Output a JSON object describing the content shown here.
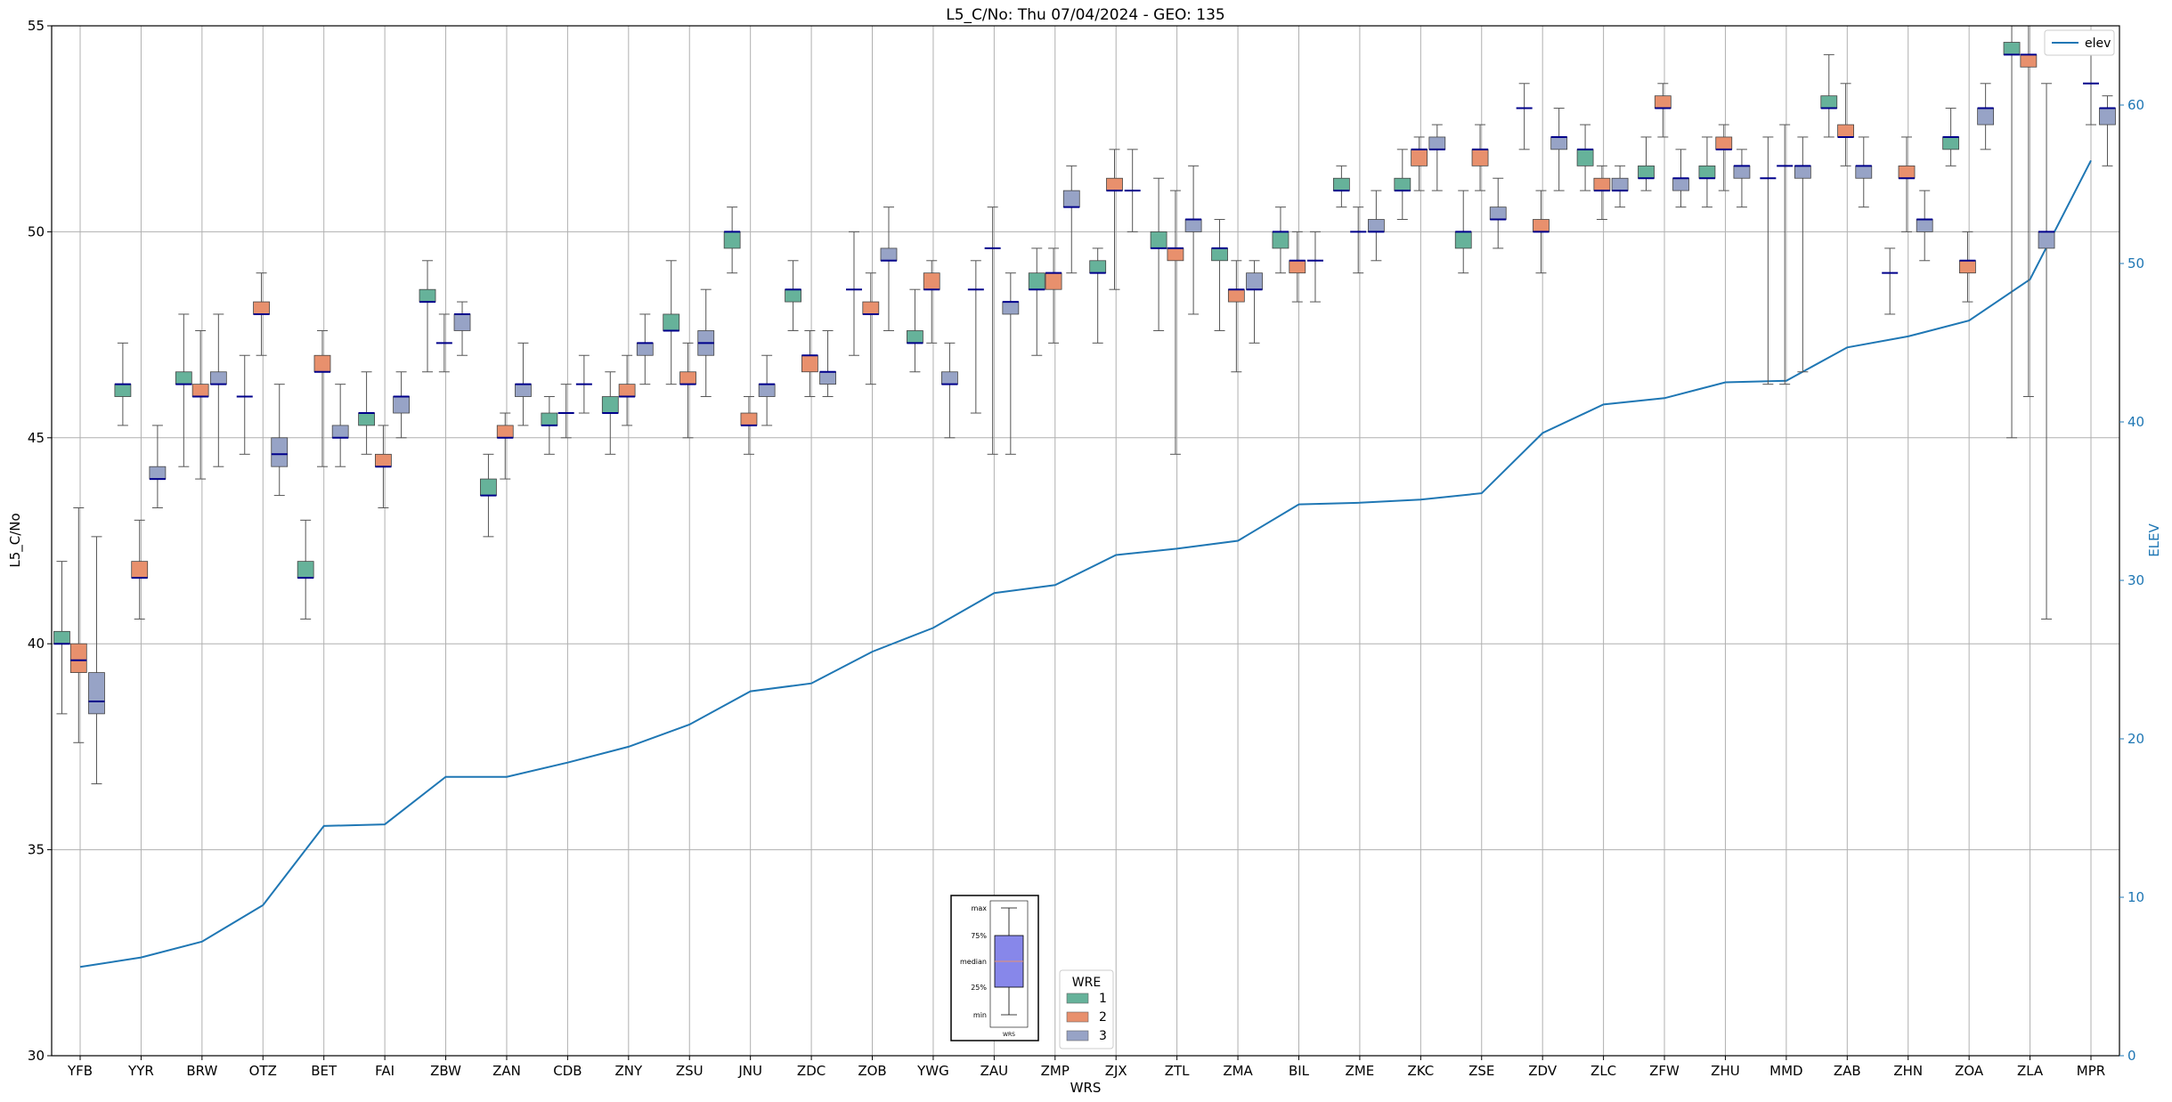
{
  "chart_data": {
    "type": "boxplot",
    "title": "L5_C/No: Thu 07/04/2024 - GEO: 135",
    "xlabel": "WRS",
    "ylabel": "L5_C/No",
    "y2label": "ELEV",
    "ylim": [
      30,
      55
    ],
    "y2lim": [
      0,
      65
    ],
    "yticks": [
      30,
      35,
      40,
      45,
      50,
      55
    ],
    "y2ticks": [
      0,
      10,
      20,
      30,
      40,
      50,
      60
    ],
    "grid": true,
    "categories": [
      "YFB",
      "YYR",
      "BRW",
      "OTZ",
      "BET",
      "FAI",
      "ZBW",
      "ZAN",
      "CDB",
      "ZNY",
      "ZSU",
      "JNU",
      "ZDC",
      "ZOB",
      "YWG",
      "ZAU",
      "ZMP",
      "ZJX",
      "ZTL",
      "ZMA",
      "BIL",
      "ZME",
      "ZKC",
      "ZSE",
      "ZDV",
      "ZLC",
      "ZFW",
      "ZHU",
      "MMD",
      "ZAB",
      "ZHN",
      "ZOA",
      "ZLA",
      "MPR"
    ],
    "legend": {
      "title": "WRE",
      "items": [
        "1",
        "2",
        "3"
      ],
      "placement": "lower-center"
    },
    "colors": {
      "1": "#66b29a",
      "2": "#e8906d",
      "3": "#97a3c6",
      "elev": "#1f77b4",
      "median": "#00008b"
    },
    "series": [
      {
        "name": "1",
        "boxes": [
          {
            "cat": "YFB",
            "min": 38.3,
            "q1": 40.0,
            "med": 40.0,
            "q3": 40.3,
            "max": 42.0
          },
          {
            "cat": "YYR",
            "min": 45.3,
            "q1": 46.0,
            "med": 46.3,
            "q3": 46.3,
            "max": 47.3
          },
          {
            "cat": "BRW",
            "min": 44.3,
            "q1": 46.3,
            "med": 46.3,
            "q3": 46.6,
            "max": 48.0
          },
          {
            "cat": "OTZ",
            "min": 44.6,
            "q1": 46.0,
            "med": 46.0,
            "q3": 46.0,
            "max": 47.0
          },
          {
            "cat": "BET",
            "min": 40.6,
            "q1": 41.6,
            "med": 41.6,
            "q3": 42.0,
            "max": 43.0
          },
          {
            "cat": "FAI",
            "min": 44.6,
            "q1": 45.3,
            "med": 45.6,
            "q3": 45.6,
            "max": 46.6
          },
          {
            "cat": "ZBW",
            "min": 46.6,
            "q1": 48.3,
            "med": 48.3,
            "q3": 48.6,
            "max": 49.3
          },
          {
            "cat": "ZAN",
            "min": 42.6,
            "q1": 43.6,
            "med": 43.6,
            "q3": 44.0,
            "max": 44.6
          },
          {
            "cat": "CDB",
            "min": 44.6,
            "q1": 45.3,
            "med": 45.3,
            "q3": 45.6,
            "max": 46.0
          },
          {
            "cat": "ZNY",
            "min": 44.6,
            "q1": 45.6,
            "med": 45.6,
            "q3": 46.0,
            "max": 46.6
          },
          {
            "cat": "ZSU",
            "min": 46.3,
            "q1": 47.6,
            "med": 47.6,
            "q3": 48.0,
            "max": 49.3
          },
          {
            "cat": "JNU",
            "min": 49.0,
            "q1": 49.6,
            "med": 50.0,
            "q3": 50.0,
            "max": 50.6
          },
          {
            "cat": "ZDC",
            "min": 47.6,
            "q1": 48.3,
            "med": 48.6,
            "q3": 48.6,
            "max": 49.3
          },
          {
            "cat": "ZOB",
            "min": 47.0,
            "q1": 48.6,
            "med": 48.6,
            "q3": 48.6,
            "max": 50.0
          },
          {
            "cat": "YWG",
            "min": 46.6,
            "q1": 47.3,
            "med": 47.3,
            "q3": 47.6,
            "max": 48.6
          },
          {
            "cat": "ZAU",
            "min": 45.6,
            "q1": 48.6,
            "med": 48.6,
            "q3": 48.6,
            "max": 49.3
          },
          {
            "cat": "ZMP",
            "min": 47.0,
            "q1": 48.6,
            "med": 48.6,
            "q3": 49.0,
            "max": 49.6
          },
          {
            "cat": "ZJX",
            "min": 47.3,
            "q1": 49.0,
            "med": 49.0,
            "q3": 49.3,
            "max": 49.6
          },
          {
            "cat": "ZTL",
            "min": 47.6,
            "q1": 49.6,
            "med": 49.6,
            "q3": 50.0,
            "max": 51.3
          },
          {
            "cat": "ZMA",
            "min": 47.6,
            "q1": 49.3,
            "med": 49.6,
            "q3": 49.6,
            "max": 50.3
          },
          {
            "cat": "BIL",
            "min": 49.0,
            "q1": 49.6,
            "med": 50.0,
            "q3": 50.0,
            "max": 50.6
          },
          {
            "cat": "ZME",
            "min": 50.6,
            "q1": 51.0,
            "med": 51.0,
            "q3": 51.3,
            "max": 51.6
          },
          {
            "cat": "ZKC",
            "min": 50.3,
            "q1": 51.0,
            "med": 51.0,
            "q3": 51.3,
            "max": 52.0
          },
          {
            "cat": "ZSE",
            "min": 49.0,
            "q1": 49.6,
            "med": 50.0,
            "q3": 50.0,
            "max": 51.0
          },
          {
            "cat": "ZDV",
            "min": 52.0,
            "q1": 53.0,
            "med": 53.0,
            "q3": 53.0,
            "max": 53.6
          },
          {
            "cat": "ZLC",
            "min": 51.0,
            "q1": 51.6,
            "med": 52.0,
            "q3": 52.0,
            "max": 52.6
          },
          {
            "cat": "ZFW",
            "min": 51.0,
            "q1": 51.3,
            "med": 51.3,
            "q3": 51.6,
            "max": 52.3
          },
          {
            "cat": "ZHU",
            "min": 50.6,
            "q1": 51.3,
            "med": 51.3,
            "q3": 51.6,
            "max": 52.3
          },
          {
            "cat": "MMD",
            "min": 46.3,
            "q1": 51.3,
            "med": 51.3,
            "q3": 51.3,
            "max": 52.3
          },
          {
            "cat": "ZAB",
            "min": 52.3,
            "q1": 53.0,
            "med": 53.0,
            "q3": 53.3,
            "max": 54.3
          },
          {
            "cat": "ZHN",
            "min": 48.0,
            "q1": 49.0,
            "med": 49.0,
            "q3": 49.0,
            "max": 49.6
          },
          {
            "cat": "ZOA",
            "min": 51.6,
            "q1": 52.0,
            "med": 52.3,
            "q3": 52.3,
            "max": 53.0
          },
          {
            "cat": "ZLA",
            "min": 45.0,
            "q1": 54.3,
            "med": 54.3,
            "q3": 54.6,
            "max": 55.0
          }
        ]
      },
      {
        "name": "2",
        "boxes": [
          {
            "cat": "YFB",
            "min": 37.6,
            "q1": 39.3,
            "med": 39.6,
            "q3": 40.0,
            "max": 43.3
          },
          {
            "cat": "YYR",
            "min": 40.6,
            "q1": 41.6,
            "med": 41.6,
            "q3": 42.0,
            "max": 43.0
          },
          {
            "cat": "BRW",
            "min": 44.0,
            "q1": 46.0,
            "med": 46.0,
            "q3": 46.3,
            "max": 47.6
          },
          {
            "cat": "OTZ",
            "min": 47.0,
            "q1": 48.0,
            "med": 48.0,
            "q3": 48.3,
            "max": 49.0
          },
          {
            "cat": "BET",
            "min": 44.3,
            "q1": 46.6,
            "med": 46.6,
            "q3": 47.0,
            "max": 47.6
          },
          {
            "cat": "FAI",
            "min": 43.3,
            "q1": 44.3,
            "med": 44.3,
            "q3": 44.6,
            "max": 45.3
          },
          {
            "cat": "ZBW",
            "min": 46.6,
            "q1": 47.3,
            "med": 47.3,
            "q3": 47.3,
            "max": 48.0
          },
          {
            "cat": "ZAN",
            "min": 44.0,
            "q1": 45.0,
            "med": 45.0,
            "q3": 45.3,
            "max": 45.6
          },
          {
            "cat": "CDB",
            "min": 45.0,
            "q1": 45.6,
            "med": 45.6,
            "q3": 45.6,
            "max": 46.3
          },
          {
            "cat": "ZNY",
            "min": 45.3,
            "q1": 46.0,
            "med": 46.0,
            "q3": 46.3,
            "max": 47.0
          },
          {
            "cat": "ZSU",
            "min": 45.0,
            "q1": 46.3,
            "med": 46.3,
            "q3": 46.6,
            "max": 47.3
          },
          {
            "cat": "JNU",
            "min": 44.6,
            "q1": 45.3,
            "med": 45.3,
            "q3": 45.6,
            "max": 46.0
          },
          {
            "cat": "ZDC",
            "min": 46.0,
            "q1": 46.6,
            "med": 47.0,
            "q3": 47.0,
            "max": 47.6
          },
          {
            "cat": "ZOB",
            "min": 46.3,
            "q1": 48.0,
            "med": 48.0,
            "q3": 48.3,
            "max": 49.0
          },
          {
            "cat": "YWG",
            "min": 47.3,
            "q1": 48.6,
            "med": 48.6,
            "q3": 49.0,
            "max": 49.3
          },
          {
            "cat": "ZAU",
            "min": 44.6,
            "q1": 49.6,
            "med": 49.6,
            "q3": 49.6,
            "max": 50.6
          },
          {
            "cat": "ZMP",
            "min": 47.3,
            "q1": 48.6,
            "med": 49.0,
            "q3": 49.0,
            "max": 49.6
          },
          {
            "cat": "ZJX",
            "min": 48.6,
            "q1": 51.0,
            "med": 51.0,
            "q3": 51.3,
            "max": 52.0
          },
          {
            "cat": "ZTL",
            "min": 44.6,
            "q1": 49.3,
            "med": 49.6,
            "q3": 49.6,
            "max": 51.0
          },
          {
            "cat": "ZMA",
            "min": 46.6,
            "q1": 48.3,
            "med": 48.6,
            "q3": 48.6,
            "max": 49.3
          },
          {
            "cat": "BIL",
            "min": 48.3,
            "q1": 49.0,
            "med": 49.3,
            "q3": 49.3,
            "max": 50.0
          },
          {
            "cat": "ZME",
            "min": 49.0,
            "q1": 50.0,
            "med": 50.0,
            "q3": 50.0,
            "max": 50.6
          },
          {
            "cat": "ZKC",
            "min": 51.0,
            "q1": 51.6,
            "med": 52.0,
            "q3": 52.0,
            "max": 52.3
          },
          {
            "cat": "ZSE",
            "min": 51.0,
            "q1": 51.6,
            "med": 52.0,
            "q3": 52.0,
            "max": 52.6
          },
          {
            "cat": "ZDV",
            "min": 49.0,
            "q1": 50.0,
            "med": 50.0,
            "q3": 50.3,
            "max": 51.0
          },
          {
            "cat": "ZLC",
            "min": 50.3,
            "q1": 51.0,
            "med": 51.0,
            "q3": 51.3,
            "max": 51.6
          },
          {
            "cat": "ZFW",
            "min": 52.3,
            "q1": 53.0,
            "med": 53.0,
            "q3": 53.3,
            "max": 53.6
          },
          {
            "cat": "ZHU",
            "min": 51.0,
            "q1": 52.0,
            "med": 52.0,
            "q3": 52.3,
            "max": 52.6
          },
          {
            "cat": "MMD",
            "min": 46.3,
            "q1": 51.6,
            "med": 51.6,
            "q3": 51.6,
            "max": 52.6
          },
          {
            "cat": "ZAB",
            "min": 51.6,
            "q1": 52.3,
            "med": 52.3,
            "q3": 52.6,
            "max": 53.6
          },
          {
            "cat": "ZHN",
            "min": 50.0,
            "q1": 51.3,
            "med": 51.3,
            "q3": 51.6,
            "max": 52.3
          },
          {
            "cat": "ZOA",
            "min": 48.3,
            "q1": 49.0,
            "med": 49.3,
            "q3": 49.3,
            "max": 50.0
          },
          {
            "cat": "ZLA",
            "min": 46.0,
            "q1": 54.0,
            "med": 54.3,
            "q3": 54.3,
            "max": 55.0
          }
        ]
      },
      {
        "name": "3",
        "boxes": [
          {
            "cat": "YFB",
            "min": 36.6,
            "q1": 38.3,
            "med": 38.6,
            "q3": 39.3,
            "max": 42.6
          },
          {
            "cat": "YYR",
            "min": 43.3,
            "q1": 44.0,
            "med": 44.0,
            "q3": 44.3,
            "max": 45.3
          },
          {
            "cat": "BRW",
            "min": 44.3,
            "q1": 46.3,
            "med": 46.3,
            "q3": 46.6,
            "max": 48.0
          },
          {
            "cat": "OTZ",
            "min": 43.6,
            "q1": 44.3,
            "med": 44.6,
            "q3": 45.0,
            "max": 46.3
          },
          {
            "cat": "BET",
            "min": 44.3,
            "q1": 45.0,
            "med": 45.0,
            "q3": 45.3,
            "max": 46.3
          },
          {
            "cat": "FAI",
            "min": 45.0,
            "q1": 45.6,
            "med": 46.0,
            "q3": 46.0,
            "max": 46.6
          },
          {
            "cat": "ZBW",
            "min": 47.0,
            "q1": 47.6,
            "med": 48.0,
            "q3": 48.0,
            "max": 48.3
          },
          {
            "cat": "ZAN",
            "min": 45.3,
            "q1": 46.0,
            "med": 46.3,
            "q3": 46.3,
            "max": 47.3
          },
          {
            "cat": "CDB",
            "min": 45.6,
            "q1": 46.3,
            "med": 46.3,
            "q3": 46.3,
            "max": 47.0
          },
          {
            "cat": "ZNY",
            "min": 46.3,
            "q1": 47.0,
            "med": 47.3,
            "q3": 47.3,
            "max": 48.0
          },
          {
            "cat": "ZSU",
            "min": 46.0,
            "q1": 47.0,
            "med": 47.3,
            "q3": 47.6,
            "max": 48.6
          },
          {
            "cat": "JNU",
            "min": 45.3,
            "q1": 46.0,
            "med": 46.3,
            "q3": 46.3,
            "max": 47.0
          },
          {
            "cat": "ZDC",
            "min": 46.0,
            "q1": 46.3,
            "med": 46.6,
            "q3": 46.6,
            "max": 47.6
          },
          {
            "cat": "ZOB",
            "min": 47.6,
            "q1": 49.3,
            "med": 49.3,
            "q3": 49.6,
            "max": 50.6
          },
          {
            "cat": "YWG",
            "min": 45.0,
            "q1": 46.3,
            "med": 46.3,
            "q3": 46.6,
            "max": 47.3
          },
          {
            "cat": "ZAU",
            "min": 44.6,
            "q1": 48.0,
            "med": 48.3,
            "q3": 48.3,
            "max": 49.0
          },
          {
            "cat": "ZMP",
            "min": 49.0,
            "q1": 50.6,
            "med": 50.6,
            "q3": 51.0,
            "max": 51.6
          },
          {
            "cat": "ZJX",
            "min": 50.0,
            "q1": 51.0,
            "med": 51.0,
            "q3": 51.0,
            "max": 52.0
          },
          {
            "cat": "ZTL",
            "min": 48.0,
            "q1": 50.0,
            "med": 50.3,
            "q3": 50.3,
            "max": 51.6
          },
          {
            "cat": "ZMA",
            "min": 47.3,
            "q1": 48.6,
            "med": 48.6,
            "q3": 49.0,
            "max": 49.3
          },
          {
            "cat": "BIL",
            "min": 48.3,
            "q1": 49.3,
            "med": 49.3,
            "q3": 49.3,
            "max": 50.0
          },
          {
            "cat": "ZME",
            "min": 49.3,
            "q1": 50.0,
            "med": 50.0,
            "q3": 50.3,
            "max": 51.0
          },
          {
            "cat": "ZKC",
            "min": 51.0,
            "q1": 52.0,
            "med": 52.0,
            "q3": 52.3,
            "max": 52.6
          },
          {
            "cat": "ZSE",
            "min": 49.6,
            "q1": 50.3,
            "med": 50.3,
            "q3": 50.6,
            "max": 51.3
          },
          {
            "cat": "ZDV",
            "min": 51.0,
            "q1": 52.0,
            "med": 52.3,
            "q3": 52.3,
            "max": 53.0
          },
          {
            "cat": "ZLC",
            "min": 50.6,
            "q1": 51.0,
            "med": 51.0,
            "q3": 51.3,
            "max": 51.6
          },
          {
            "cat": "ZFW",
            "min": 50.6,
            "q1": 51.0,
            "med": 51.3,
            "q3": 51.3,
            "max": 52.0
          },
          {
            "cat": "ZHU",
            "min": 50.6,
            "q1": 51.3,
            "med": 51.6,
            "q3": 51.6,
            "max": 52.0
          },
          {
            "cat": "MMD",
            "min": 46.6,
            "q1": 51.3,
            "med": 51.6,
            "q3": 51.6,
            "max": 52.3
          },
          {
            "cat": "ZAB",
            "min": 50.6,
            "q1": 51.3,
            "med": 51.6,
            "q3": 51.6,
            "max": 52.3
          },
          {
            "cat": "ZHN",
            "min": 49.3,
            "q1": 50.0,
            "med": 50.3,
            "q3": 50.3,
            "max": 51.0
          },
          {
            "cat": "ZOA",
            "min": 52.0,
            "q1": 52.6,
            "med": 53.0,
            "q3": 53.0,
            "max": 53.6
          },
          {
            "cat": "ZLA",
            "min": 40.6,
            "q1": 49.6,
            "med": 50.0,
            "q3": 50.0,
            "max": 53.6
          },
          {
            "cat": "MPR",
            "min": 51.6,
            "q1": 52.6,
            "med": 53.0,
            "q3": 53.0,
            "max": 53.3
          }
        ]
      },
      {
        "name": "",
        "boxes": [
          {
            "cat": "MPR",
            "min": 52.6,
            "q1": 53.6,
            "med": 53.6,
            "q3": 53.6,
            "max": 54.3
          }
        ]
      }
    ],
    "elev": {
      "name": "elev",
      "axis": "right",
      "values": [
        5.6,
        6.2,
        7.2,
        9.5,
        14.5,
        14.6,
        17.6,
        17.6,
        18.5,
        19.5,
        20.9,
        23.0,
        23.5,
        25.5,
        27.0,
        29.2,
        29.7,
        31.6,
        32.0,
        32.5,
        34.8,
        34.9,
        35.1,
        35.5,
        39.3,
        41.1,
        41.5,
        42.5,
        42.6,
        44.7,
        45.4,
        46.4,
        49.0,
        56.5
      ]
    },
    "inset_legend": {
      "labels": [
        "max",
        "75%",
        "median",
        "25%",
        "min"
      ],
      "xlabel": "WRS"
    }
  }
}
